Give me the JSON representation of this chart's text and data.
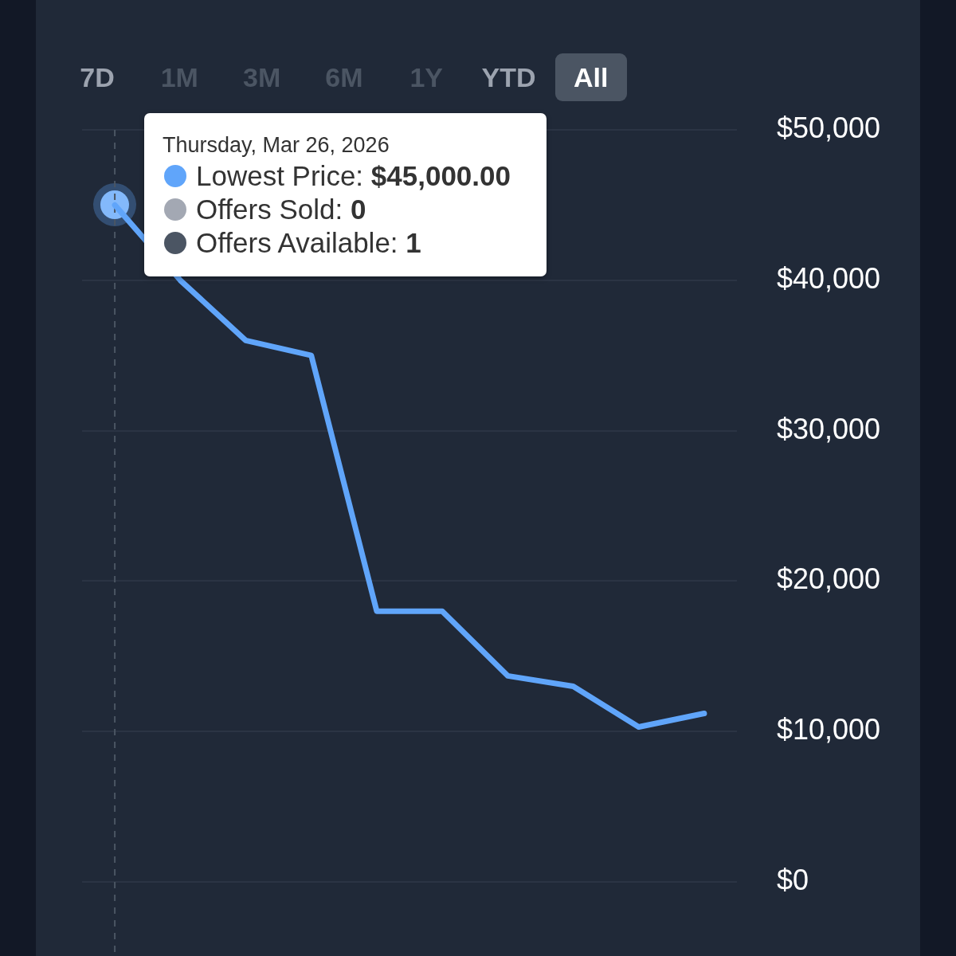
{
  "chart_data": {
    "type": "line",
    "categories": [
      null,
      null,
      null,
      null,
      null,
      null,
      null,
      null,
      null,
      null
    ],
    "values": [
      45000,
      40000,
      36000,
      35000,
      18000,
      18000,
      13700,
      13000,
      10300,
      11200
    ],
    "color": "#60a5fa",
    "ylim": [
      0,
      50000
    ],
    "yticks": [
      {
        "value": 0,
        "label": "$0"
      },
      {
        "value": 10000,
        "label": "$10,000"
      },
      {
        "value": 20000,
        "label": "$20,000"
      },
      {
        "value": 30000,
        "label": "$30,000"
      },
      {
        "value": 40000,
        "label": "$40,000"
      },
      {
        "value": 50000,
        "label": "$50,000"
      }
    ],
    "grid": "y",
    "tick_labels": "y",
    "annotations": [
      "7D",
      "1M",
      "3M",
      "6M",
      "1Y",
      "YTD",
      "All",
      "Thursday, Mar 26, 2026",
      "Lowest Price: $45,000.00",
      "Offers Sold: 0",
      "Offers Available: 1"
    ]
  }
}
